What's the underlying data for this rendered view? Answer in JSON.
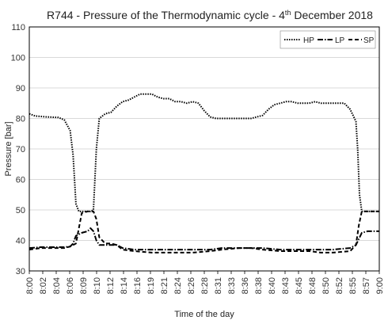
{
  "chart_data": {
    "type": "line",
    "title": {
      "main": "R744 - Pressure of the Thermodynamic cycle - 4",
      "superscript": "th",
      "rest": " December 2018"
    },
    "xlabel": "Time of the day",
    "ylabel": "Pressure [bar]",
    "ylim": [
      30,
      110
    ],
    "yticks": [
      30,
      40,
      50,
      60,
      70,
      80,
      90,
      100,
      110
    ],
    "xlim": [
      "8:00",
      "9:00"
    ],
    "xticks": [
      "8:00",
      "8:02",
      "8:04",
      "8:06",
      "8:09",
      "8:10",
      "8:12",
      "8:14",
      "8:16",
      "8:19",
      "8:21",
      "8:24",
      "8:26",
      "8:28",
      "8:31",
      "8:33",
      "8:36",
      "8:38",
      "8:40",
      "8:43",
      "8:45",
      "8:48",
      "8:50",
      "8:52",
      "8:55",
      "8:57",
      "9:00"
    ],
    "grid": "horizontal",
    "legend": "top-right",
    "series": [
      {
        "name": "HP",
        "style": "dotted",
        "x": [
          "8:00",
          "8:01",
          "8:03",
          "8:05",
          "8:06",
          "8:07",
          "8:07.5",
          "8:08",
          "8:08.5",
          "8:09",
          "8:10",
          "8:10.5",
          "8:11",
          "8:11.5",
          "8:12",
          "8:13",
          "8:14",
          "8:15",
          "8:16",
          "8:17",
          "8:18",
          "8:19",
          "8:20",
          "8:21",
          "8:22",
          "8:23",
          "8:24",
          "8:25",
          "8:26",
          "8:27",
          "8:28",
          "8:29",
          "8:30",
          "8:31",
          "8:32",
          "8:34",
          "8:36",
          "8:38",
          "8:39",
          "8:40",
          "8:41",
          "8:42",
          "8:43",
          "8:44",
          "8:45",
          "8:46",
          "8:47",
          "8:48",
          "8:49",
          "8:50",
          "8:51",
          "8:52",
          "8:53",
          "8:54",
          "8:55",
          "8:55.5",
          "8:56",
          "8:56.3",
          "8:56.6",
          "8:57",
          "8:58",
          "9:00"
        ],
        "values": [
          81.5,
          80.8,
          80.5,
          80.3,
          79.5,
          76,
          68,
          52,
          49.5,
          49.5,
          49.5,
          49.5,
          50,
          70,
          80,
          81.5,
          82,
          84,
          85.5,
          86,
          87,
          88,
          88,
          88,
          87,
          86.5,
          86.5,
          85.5,
          85.5,
          85,
          85.5,
          85,
          82.5,
          80.5,
          80,
          80,
          80,
          80,
          80.5,
          81,
          83,
          84.5,
          85,
          85.5,
          85.5,
          85,
          85,
          85,
          85.5,
          85,
          85,
          85,
          85,
          85,
          83,
          81,
          79,
          70,
          55,
          49.5,
          49.5,
          49.5
        ]
      },
      {
        "name": "LP",
        "style": "dash-dot",
        "x": [
          "8:00",
          "8:02",
          "8:04",
          "8:06",
          "8:07",
          "8:07.5",
          "8:08",
          "8:09",
          "8:10",
          "8:10.5",
          "8:11",
          "8:11.5",
          "8:12",
          "8:13",
          "8:14",
          "8:15",
          "8:16",
          "8:18",
          "8:21",
          "8:24",
          "8:28",
          "8:31",
          "8:33",
          "8:36",
          "8:38",
          "8:40",
          "8:43",
          "8:45",
          "8:48",
          "8:50",
          "8:52",
          "8:55",
          "8:56",
          "8:56.5",
          "8:57",
          "8:58",
          "9:00"
        ],
        "values": [
          37.5,
          37.8,
          37.8,
          37.8,
          38,
          39,
          41.5,
          42.5,
          43,
          44,
          43,
          40,
          38.5,
          38.5,
          38.5,
          38.5,
          37.5,
          37,
          37,
          37,
          37,
          37,
          37.5,
          37.5,
          37.5,
          37.5,
          37,
          37,
          37,
          37,
          37,
          37.5,
          38.5,
          40.5,
          42.5,
          43,
          43
        ]
      },
      {
        "name": "SP",
        "style": "dashed",
        "x": [
          "8:00",
          "8:02",
          "8:04",
          "8:06",
          "8:07",
          "8:08",
          "8:08.5",
          "8:09",
          "8:10",
          "8:11",
          "8:11.5",
          "8:12",
          "8:13",
          "8:14",
          "8:15",
          "8:16",
          "8:18",
          "8:21",
          "8:24",
          "8:28",
          "8:31",
          "8:33",
          "8:36",
          "8:38",
          "8:40",
          "8:43",
          "8:45",
          "8:48",
          "8:50",
          "8:52",
          "8:55",
          "8:56",
          "8:56.5",
          "8:57",
          "8:58",
          "9:00"
        ],
        "values": [
          37,
          37.5,
          37.5,
          37.5,
          38,
          39,
          44,
          49,
          49.5,
          49.5,
          47,
          41,
          39,
          39,
          38.5,
          37,
          36.5,
          36,
          36,
          36,
          36.5,
          37,
          37.5,
          37.5,
          37,
          36.5,
          36.5,
          36.5,
          36,
          36,
          36.5,
          38.5,
          45,
          49.5,
          49.5,
          49.5
        ]
      }
    ]
  }
}
